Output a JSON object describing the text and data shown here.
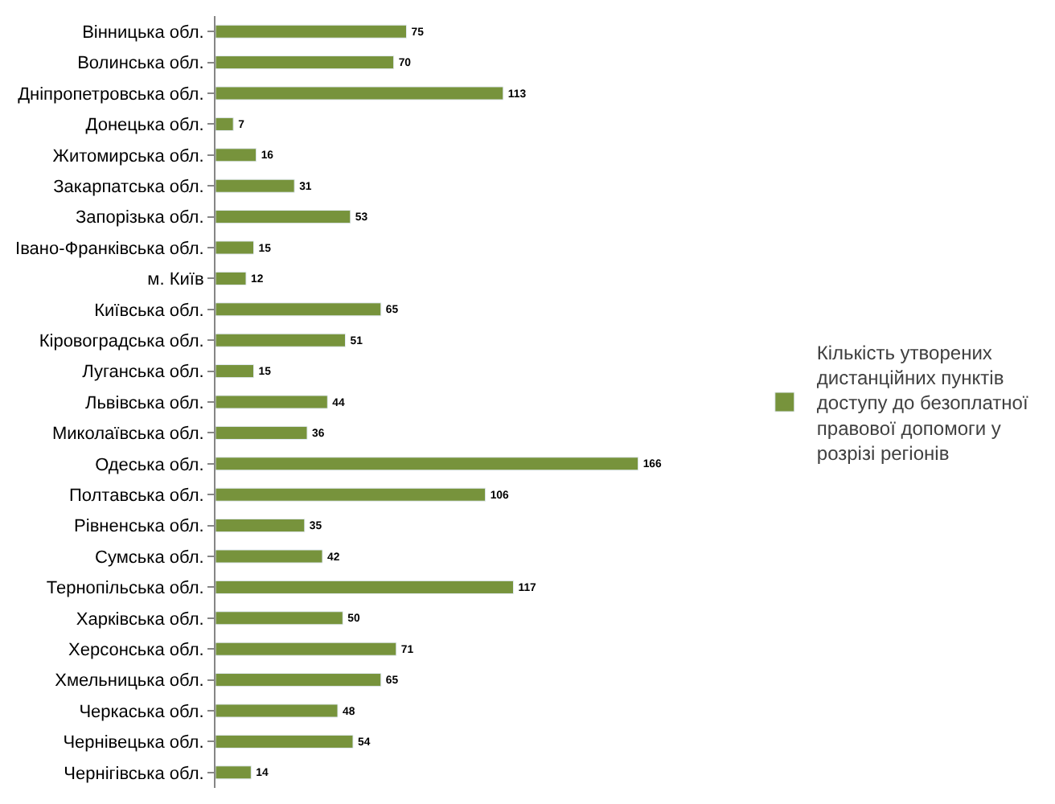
{
  "chart_data": {
    "type": "bar",
    "orientation": "horizontal",
    "categories": [
      "Вінницька обл.",
      "Волинська обл.",
      "Дніпропетровська обл.",
      "Донецька обл.",
      "Житомирська обл.",
      "Закарпатська обл.",
      "Запорізька обл.",
      "Івано-Франківська обл.",
      "м. Київ",
      "Київська обл.",
      "Кіровоградська обл.",
      "Луганська обл.",
      "Львівська обл.",
      "Миколаївська обл.",
      "Одеська обл.",
      "Полтавська обл.",
      "Рівненська обл.",
      "Сумська обл.",
      "Тернопільська обл.",
      "Харківська обл.",
      "Херсонська обл.",
      "Хмельницька обл.",
      "Черкаська обл.",
      "Чернівецька обл.",
      "Чернігівська обл."
    ],
    "series": [
      {
        "name": "Кількість утворених дистанційних пунктів доступу до безоплатної правової допомоги у розрізі регіонів",
        "color": "#77933c",
        "values": [
          75,
          70,
          113,
          7,
          16,
          31,
          53,
          15,
          12,
          65,
          51,
          15,
          44,
          36,
          166,
          106,
          35,
          42,
          117,
          50,
          71,
          65,
          48,
          54,
          14
        ]
      }
    ],
    "data_labels": true,
    "legend": "right"
  }
}
